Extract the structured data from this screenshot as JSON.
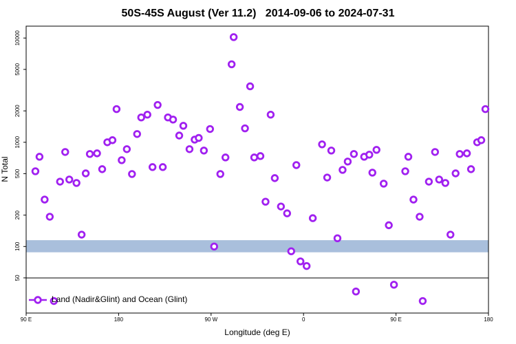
{
  "chart_data": {
    "type": "scatter",
    "title": "50S-45S August (Ver 11.2)   2014-09-06 to 2024-07-31",
    "x_label": "Longitude (deg E)",
    "y_label": "N Total",
    "log_y": true,
    "legend": "bottom-left",
    "xlim": [
      90,
      540
    ],
    "xticks": [
      {
        "value": 90,
        "label": "90 E"
      },
      180,
      {
        "value": 270,
        "label": "90 W"
      },
      {
        "value": 360,
        "label": "0"
      },
      {
        "value": 450,
        "label": "90 E"
      },
      {
        "value": 540,
        "label": "180"
      }
    ],
    "ylim": [
      23,
      13000
    ],
    "yticks": [
      50,
      100,
      200,
      500,
      1000,
      2000,
      5000,
      10000
    ],
    "band": {
      "range": [
        88,
        115
      ],
      "color": "#a9bfdc"
    },
    "series": [
      {
        "name": "Land (Nadir&Glint) and Ocean (Glint)",
        "color": "#a020f0",
        "x": [
          99,
          103,
          108,
          113,
          117,
          123,
          128,
          132,
          139,
          144,
          148,
          152,
          159,
          164,
          169,
          174,
          178,
          183,
          188,
          193,
          198,
          202,
          208,
          213,
          218,
          223,
          228,
          233,
          239,
          243,
          249,
          254,
          258,
          263,
          269,
          273,
          279,
          284,
          290,
          292,
          298,
          303,
          308,
          312,
          318,
          323,
          328,
          332,
          338,
          344,
          348,
          353,
          357,
          363,
          369,
          378,
          383,
          387,
          393,
          398,
          403,
          411,
          409,
          419,
          424,
          427,
          431,
          438,
          443,
          448,
          459,
          462,
          467,
          473,
          476,
          482,
          488,
          492,
          498,
          503,
          508,
          512,
          519,
          523,
          529,
          533,
          537
        ],
        "values": [
          527,
          726,
          282,
          193,
          30,
          419,
          807,
          439,
          407,
          130,
          503,
          772,
          783,
          552,
          1000,
          1047,
          2080,
          673,
          859,
          496,
          1200,
          1730,
          1840,
          578,
          2280,
          578,
          1730,
          1650,
          1160,
          1440,
          859,
          1060,
          1100,
          833,
          1340,
          100,
          496,
          715,
          5600,
          10200,
          2180,
          1360,
          3440,
          715,
          737,
          269,
          1840,
          453,
          242,
          208,
          90,
          604,
          72,
          65,
          187,
          955,
          459,
          833,
          120,
          543,
          653,
          37,
          772,
          726,
          760,
          511,
          846,
          401,
          160,
          43,
          527,
          726,
          282,
          193,
          30,
          419,
          807,
          439,
          407,
          130,
          503,
          772,
          783,
          552,
          1000,
          1047,
          2080
        ]
      }
    ]
  }
}
